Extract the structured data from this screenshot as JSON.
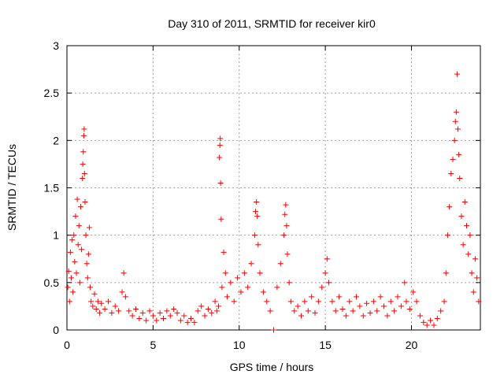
{
  "chart_data": {
    "type": "scatter",
    "title": "Day 310 of 2011, SRMTID for receiver kir0",
    "xlabel": "GPS time / hours",
    "ylabel": "SRMTID / TECUs",
    "xlim": [
      0,
      24
    ],
    "ylim": [
      0,
      3
    ],
    "xticks": [
      0,
      5,
      10,
      15,
      20
    ],
    "yticks": [
      0,
      0.5,
      1,
      1.5,
      2,
      2.5,
      3
    ],
    "xtick_labels": [
      "0",
      "5",
      "10",
      "15",
      "20"
    ],
    "ytick_labels": [
      "0",
      "0.5",
      "1",
      "1.5",
      "2",
      "2.5",
      "3"
    ],
    "grid": true,
    "marker": "plus",
    "color": "#ff0000",
    "series": [
      {
        "values": [
          [
            0.05,
            0.45
          ],
          [
            0.1,
            0.62
          ],
          [
            0.15,
            0.3
          ],
          [
            0.2,
            0.82
          ],
          [
            0.25,
            0.55
          ],
          [
            0.3,
            0.95
          ],
          [
            0.35,
            0.4
          ],
          [
            0.4,
            1.0
          ],
          [
            0.45,
            0.72
          ],
          [
            0.5,
            1.2
          ],
          [
            0.55,
            0.6
          ],
          [
            0.6,
            1.38
          ],
          [
            0.65,
            0.9
          ],
          [
            0.7,
            1.1
          ],
          [
            0.75,
            0.5
          ],
          [
            0.8,
            1.3
          ],
          [
            0.85,
            0.85
          ],
          [
            0.9,
            1.6
          ],
          [
            0.92,
            1.75
          ],
          [
            0.95,
            1.88
          ],
          [
            0.98,
            2.05
          ],
          [
            1.0,
            2.12
          ],
          [
            1.02,
            1.65
          ],
          [
            1.05,
            1.35
          ],
          [
            1.1,
            1.0
          ],
          [
            1.15,
            0.7
          ],
          [
            1.2,
            0.55
          ],
          [
            1.25,
            0.8
          ],
          [
            1.3,
            1.08
          ],
          [
            1.35,
            0.45
          ],
          [
            1.4,
            0.3
          ],
          [
            1.5,
            0.25
          ],
          [
            1.6,
            0.38
          ],
          [
            1.7,
            0.22
          ],
          [
            1.8,
            0.3
          ],
          [
            1.9,
            0.18
          ],
          [
            2.0,
            0.28
          ],
          [
            2.2,
            0.22
          ],
          [
            2.4,
            0.3
          ],
          [
            2.6,
            0.18
          ],
          [
            2.8,
            0.25
          ],
          [
            3.0,
            0.2
          ],
          [
            3.2,
            0.4
          ],
          [
            3.3,
            0.6
          ],
          [
            3.4,
            0.35
          ],
          [
            3.6,
            0.2
          ],
          [
            3.8,
            0.15
          ],
          [
            4.0,
            0.22
          ],
          [
            4.2,
            0.12
          ],
          [
            4.4,
            0.18
          ],
          [
            4.6,
            0.1
          ],
          [
            4.8,
            0.2
          ],
          [
            5.0,
            0.15
          ],
          [
            5.2,
            0.1
          ],
          [
            5.4,
            0.18
          ],
          [
            5.6,
            0.12
          ],
          [
            5.8,
            0.2
          ],
          [
            6.0,
            0.15
          ],
          [
            6.2,
            0.22
          ],
          [
            6.4,
            0.18
          ],
          [
            6.6,
            0.1
          ],
          [
            6.8,
            0.15
          ],
          [
            7.0,
            0.08
          ],
          [
            7.2,
            0.12
          ],
          [
            7.4,
            0.08
          ],
          [
            7.6,
            0.2
          ],
          [
            7.8,
            0.25
          ],
          [
            8.0,
            0.15
          ],
          [
            8.2,
            0.22
          ],
          [
            8.4,
            0.18
          ],
          [
            8.6,
            0.3
          ],
          [
            8.7,
            0.2
          ],
          [
            8.8,
            0.25
          ],
          [
            8.85,
            1.82
          ],
          [
            8.88,
            1.95
          ],
          [
            8.9,
            2.02
          ],
          [
            8.92,
            1.55
          ],
          [
            8.95,
            1.17
          ],
          [
            9.0,
            0.45
          ],
          [
            9.1,
            0.82
          ],
          [
            9.2,
            0.6
          ],
          [
            9.3,
            0.35
          ],
          [
            9.5,
            0.5
          ],
          [
            9.7,
            0.3
          ],
          [
            9.9,
            0.55
          ],
          [
            10.1,
            0.4
          ],
          [
            10.3,
            0.6
          ],
          [
            10.5,
            0.45
          ],
          [
            10.7,
            0.7
          ],
          [
            10.9,
            1.0
          ],
          [
            10.95,
            1.25
          ],
          [
            11.0,
            1.35
          ],
          [
            11.05,
            1.2
          ],
          [
            11.1,
            0.9
          ],
          [
            11.2,
            0.6
          ],
          [
            11.4,
            0.4
          ],
          [
            11.6,
            0.3
          ],
          [
            11.8,
            0.2
          ],
          [
            12.0,
            0.0
          ],
          [
            12.2,
            0.45
          ],
          [
            12.4,
            0.7
          ],
          [
            12.6,
            1.0
          ],
          [
            12.65,
            1.22
          ],
          [
            12.7,
            1.32
          ],
          [
            12.75,
            1.1
          ],
          [
            12.8,
            0.8
          ],
          [
            12.9,
            0.5
          ],
          [
            13.0,
            0.3
          ],
          [
            13.2,
            0.2
          ],
          [
            13.4,
            0.25
          ],
          [
            13.6,
            0.15
          ],
          [
            13.8,
            0.3
          ],
          [
            14.0,
            0.2
          ],
          [
            14.2,
            0.35
          ],
          [
            14.4,
            0.18
          ],
          [
            14.6,
            0.3
          ],
          [
            14.8,
            0.45
          ],
          [
            15.0,
            0.6
          ],
          [
            15.1,
            0.75
          ],
          [
            15.2,
            0.5
          ],
          [
            15.4,
            0.3
          ],
          [
            15.6,
            0.2
          ],
          [
            15.8,
            0.35
          ],
          [
            16.0,
            0.22
          ],
          [
            16.2,
            0.15
          ],
          [
            16.4,
            0.3
          ],
          [
            16.6,
            0.2
          ],
          [
            16.8,
            0.35
          ],
          [
            17.0,
            0.25
          ],
          [
            17.2,
            0.15
          ],
          [
            17.4,
            0.28
          ],
          [
            17.6,
            0.18
          ],
          [
            17.8,
            0.3
          ],
          [
            18.0,
            0.2
          ],
          [
            18.2,
            0.35
          ],
          [
            18.4,
            0.25
          ],
          [
            18.6,
            0.15
          ],
          [
            18.8,
            0.3
          ],
          [
            19.0,
            0.2
          ],
          [
            19.2,
            0.35
          ],
          [
            19.4,
            0.25
          ],
          [
            19.6,
            0.5
          ],
          [
            19.7,
            0.3
          ],
          [
            19.9,
            0.22
          ],
          [
            20.1,
            0.4
          ],
          [
            20.3,
            0.3
          ],
          [
            20.5,
            0.15
          ],
          [
            20.7,
            0.08
          ],
          [
            20.9,
            0.05
          ],
          [
            21.1,
            0.1
          ],
          [
            21.3,
            0.05
          ],
          [
            21.5,
            0.12
          ],
          [
            21.7,
            0.2
          ],
          [
            21.9,
            0.3
          ],
          [
            22.0,
            0.6
          ],
          [
            22.1,
            1.0
          ],
          [
            22.2,
            1.3
          ],
          [
            22.3,
            1.65
          ],
          [
            22.4,
            1.8
          ],
          [
            22.5,
            2.0
          ],
          [
            22.55,
            2.2
          ],
          [
            22.6,
            2.3
          ],
          [
            22.65,
            2.7
          ],
          [
            22.7,
            2.12
          ],
          [
            22.75,
            1.85
          ],
          [
            22.8,
            1.6
          ],
          [
            22.9,
            1.2
          ],
          [
            23.0,
            0.9
          ],
          [
            23.1,
            1.35
          ],
          [
            23.2,
            1.1
          ],
          [
            23.3,
            0.8
          ],
          [
            23.4,
            1.0
          ],
          [
            23.5,
            0.6
          ],
          [
            23.6,
            0.4
          ],
          [
            23.7,
            0.75
          ],
          [
            23.8,
            0.55
          ],
          [
            23.9,
            0.3
          ]
        ]
      }
    ]
  }
}
